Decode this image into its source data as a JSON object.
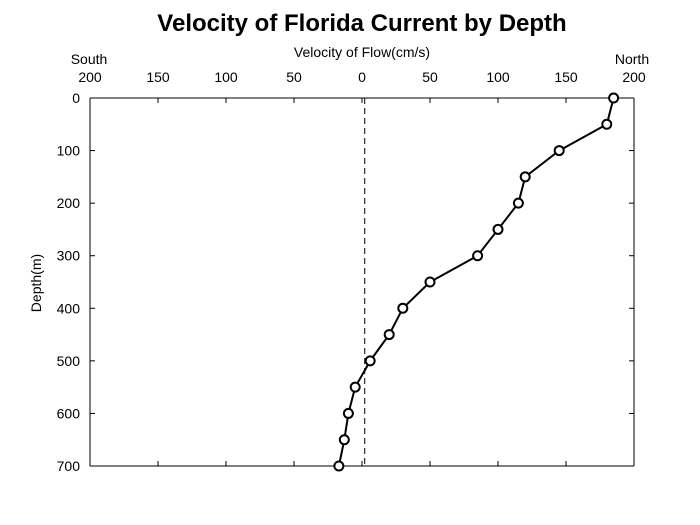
{
  "chart_data": {
    "type": "line",
    "title": "Velocity of Florida Current by Depth",
    "xlabel": "Velocity of Flow(cm/s)",
    "ylabel": "Depth(m)",
    "x_axis_position": "top",
    "x_tick_labels": [
      "200",
      "150",
      "100",
      "50",
      "0",
      "50",
      "100",
      "150",
      "200"
    ],
    "x_tick_values": [
      -200,
      -150,
      -100,
      -50,
      0,
      50,
      100,
      150,
      200
    ],
    "xlim": [
      -200,
      200
    ],
    "y_tick_labels": [
      "0",
      "100",
      "200",
      "300",
      "400",
      "500",
      "600",
      "700"
    ],
    "y_tick_values": [
      0,
      100,
      200,
      300,
      400,
      500,
      600,
      700
    ],
    "ylim": [
      0,
      700
    ],
    "y_inverted": true,
    "direction_labels": {
      "left": "South",
      "right": "North"
    },
    "reference_line": {
      "x": 2,
      "style": "dashed"
    },
    "grid": false,
    "series": [
      {
        "marker": "open-circle",
        "color": "#000000",
        "points": [
          {
            "velocity": 185,
            "depth": 0
          },
          {
            "velocity": 180,
            "depth": 50
          },
          {
            "velocity": 145,
            "depth": 100
          },
          {
            "velocity": 120,
            "depth": 150
          },
          {
            "velocity": 115,
            "depth": 200
          },
          {
            "velocity": 100,
            "depth": 250
          },
          {
            "velocity": 85,
            "depth": 300
          },
          {
            "velocity": 50,
            "depth": 350
          },
          {
            "velocity": 30,
            "depth": 400
          },
          {
            "velocity": 20,
            "depth": 450
          },
          {
            "velocity": 6,
            "depth": 500
          },
          {
            "velocity": -5,
            "depth": 550
          },
          {
            "velocity": -10,
            "depth": 600
          },
          {
            "velocity": -13,
            "depth": 650
          },
          {
            "velocity": -17,
            "depth": 700
          }
        ]
      }
    ]
  }
}
